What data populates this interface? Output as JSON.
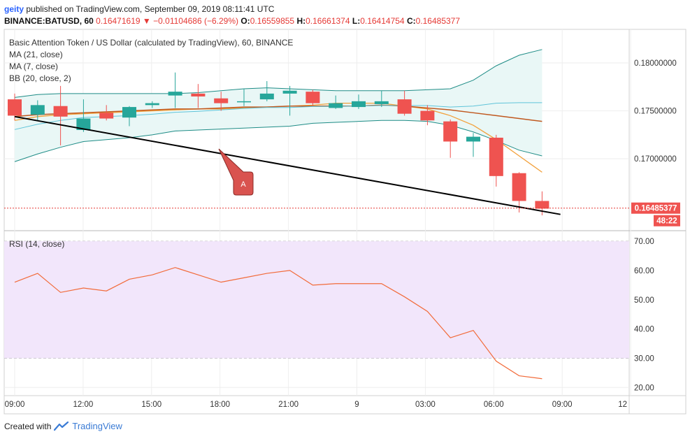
{
  "header": {
    "author": "geity",
    "published_text": "published on TradingView.com, September 09, 2019 08:11:41 UTC",
    "symbol": "BINANCE:BATUSD, 60",
    "last": "0.16471619",
    "arrow": "▼",
    "change": "−0.01104686 (−6.29%)",
    "o_label": "O:",
    "o_value": "0.16559855",
    "h_label": "H:",
    "h_value": "0.16661374",
    "l_label": "L:",
    "l_value": "0.16414754",
    "c_label": "C:",
    "c_value": "0.16485377"
  },
  "legend": {
    "title": "Basic Attention Token / US Dollar (calculated by TradingView), 60, BINANCE",
    "ma21": "MA (21, close)",
    "ma7": "MA (7, close)",
    "bb": "BB (20, close, 2)",
    "rsi": "RSI (14, close)"
  },
  "annotation": {
    "label": "A"
  },
  "price_tag": "0.16485377",
  "countdown_tag": "48:22",
  "footer": {
    "created_with": "Created with",
    "brand": "TradingView"
  },
  "colors": {
    "up": "#26a69a",
    "down": "#ef5350",
    "ma21": "#c0581f",
    "ma7": "#f2a03a",
    "bb": "#1e8c86",
    "bb_fill": "#e9f7f6",
    "rsi_line": "#f26b3a",
    "rsi_band": "#f2e6fb",
    "trendline": "#000000",
    "annotation": "#d9534f"
  },
  "chart_data": [
    {
      "type": "candlestick",
      "title": "Basic Attention Token / US Dollar (calculated by TradingView), 60, BINANCE",
      "x_tick_labels": [
        "09:00",
        "12:00",
        "15:00",
        "18:00",
        "21:00",
        "9",
        "03:00",
        "06:00",
        "09:00",
        "12"
      ],
      "y_tick_labels": [
        "0.18000000",
        "0.17500000",
        "0.17000000"
      ],
      "ylim": [
        0.1625,
        0.1835
      ],
      "grid": true,
      "candles": [
        {
          "o": 0.1762,
          "h": 0.1768,
          "l": 0.174,
          "c": 0.1745
        },
        {
          "o": 0.1746,
          "h": 0.1761,
          "l": 0.174,
          "c": 0.1756
        },
        {
          "o": 0.1755,
          "h": 0.1776,
          "l": 0.1714,
          "c": 0.1744
        },
        {
          "o": 0.173,
          "h": 0.1762,
          "l": 0.1728,
          "c": 0.1742
        },
        {
          "o": 0.1748,
          "h": 0.1756,
          "l": 0.174,
          "c": 0.1742
        },
        {
          "o": 0.1743,
          "h": 0.1755,
          "l": 0.1734,
          "c": 0.1754
        },
        {
          "o": 0.1756,
          "h": 0.176,
          "l": 0.1753,
          "c": 0.1758
        },
        {
          "o": 0.1766,
          "h": 0.179,
          "l": 0.1753,
          "c": 0.177
        },
        {
          "o": 0.1768,
          "h": 0.1778,
          "l": 0.1753,
          "c": 0.1765
        },
        {
          "o": 0.1763,
          "h": 0.177,
          "l": 0.175,
          "c": 0.1758
        },
        {
          "o": 0.1759,
          "h": 0.1773,
          "l": 0.1755,
          "c": 0.176
        },
        {
          "o": 0.1762,
          "h": 0.1781,
          "l": 0.176,
          "c": 0.1768
        },
        {
          "o": 0.1768,
          "h": 0.1776,
          "l": 0.1745,
          "c": 0.1771
        },
        {
          "o": 0.177,
          "h": 0.1772,
          "l": 0.1755,
          "c": 0.1758
        },
        {
          "o": 0.1753,
          "h": 0.1766,
          "l": 0.1752,
          "c": 0.1758
        },
        {
          "o": 0.1754,
          "h": 0.1767,
          "l": 0.1752,
          "c": 0.176
        },
        {
          "o": 0.1757,
          "h": 0.1771,
          "l": 0.1754,
          "c": 0.176
        },
        {
          "o": 0.1762,
          "h": 0.1771,
          "l": 0.1745,
          "c": 0.1747
        },
        {
          "o": 0.175,
          "h": 0.1756,
          "l": 0.1735,
          "c": 0.174
        },
        {
          "o": 0.1739,
          "h": 0.1741,
          "l": 0.1701,
          "c": 0.1718
        },
        {
          "o": 0.1718,
          "h": 0.1727,
          "l": 0.1702,
          "c": 0.1723
        },
        {
          "o": 0.1722,
          "h": 0.1725,
          "l": 0.1671,
          "c": 0.1682
        },
        {
          "o": 0.1685,
          "h": 0.1686,
          "l": 0.1644,
          "c": 0.1656
        },
        {
          "o": 0.1656,
          "h": 0.1666,
          "l": 0.1641,
          "c": 0.1648
        }
      ],
      "series": [
        {
          "name": "MA (21, close)",
          "values": [
            0.1744,
            0.1746,
            0.1747,
            0.1748,
            0.1749,
            0.175,
            0.1751,
            0.1752,
            0.1752,
            0.1753,
            0.1754,
            0.1754,
            0.1755,
            0.1755,
            0.1755,
            0.1755,
            0.1756,
            0.1755,
            0.1753,
            0.1751,
            0.1748,
            0.1745,
            0.1742,
            0.1739
          ]
        },
        {
          "name": "MA (7, close)",
          "values": [
            0.174,
            0.1744,
            0.1746,
            0.1747,
            0.1748,
            0.1749,
            0.175,
            0.1751,
            0.1752,
            0.1752,
            0.1753,
            0.1754,
            0.1755,
            0.1756,
            0.1758,
            0.1758,
            0.1758,
            0.1755,
            0.1752,
            0.1745,
            0.1735,
            0.172,
            0.1703,
            0.1686
          ]
        },
        {
          "name": "BB (20, close, 2)",
          "values": [
            0.1697,
            0.1705,
            0.1712,
            0.1718,
            0.172,
            0.1722,
            0.1725,
            0.1729,
            0.173,
            0.1731,
            0.1732,
            0.1733,
            0.1734,
            0.1737,
            0.1738,
            0.1739,
            0.174,
            0.174,
            0.1739,
            0.1735,
            0.1728,
            0.1719,
            0.1709,
            0.1703
          ]
        },
        {
          "name": "BB (20, close, 2)",
          "values": [
            0.1764,
            0.1767,
            0.1768,
            0.1768,
            0.1768,
            0.1768,
            0.1768,
            0.1768,
            0.1769,
            0.1771,
            0.1773,
            0.1774,
            0.1773,
            0.1772,
            0.1771,
            0.1771,
            0.1771,
            0.1771,
            0.1772,
            0.1773,
            0.1782,
            0.1797,
            0.1808,
            0.1814
          ]
        }
      ],
      "trendline": [
        {
          "i": 0,
          "v": 0.1744
        },
        {
          "i": 23.8,
          "v": 0.1642
        }
      ],
      "last_price": 0.16485377
    },
    {
      "type": "line",
      "title": "RSI (14, close)",
      "y_tick_labels": [
        "70.00",
        "60.00",
        "50.00",
        "40.00",
        "30.00",
        "20.00"
      ],
      "ylim": [
        17.2,
        73.6
      ],
      "band": [
        30,
        70
      ],
      "grid": true,
      "series": [
        {
          "name": "RSI (14, close)",
          "values": [
            56,
            59,
            52.5,
            54,
            53,
            57,
            58.5,
            61,
            58.5,
            56,
            57.5,
            59,
            60,
            55,
            55.5,
            55.5,
            55.5,
            51,
            46,
            37,
            39.5,
            29,
            24,
            23
          ]
        }
      ]
    }
  ]
}
